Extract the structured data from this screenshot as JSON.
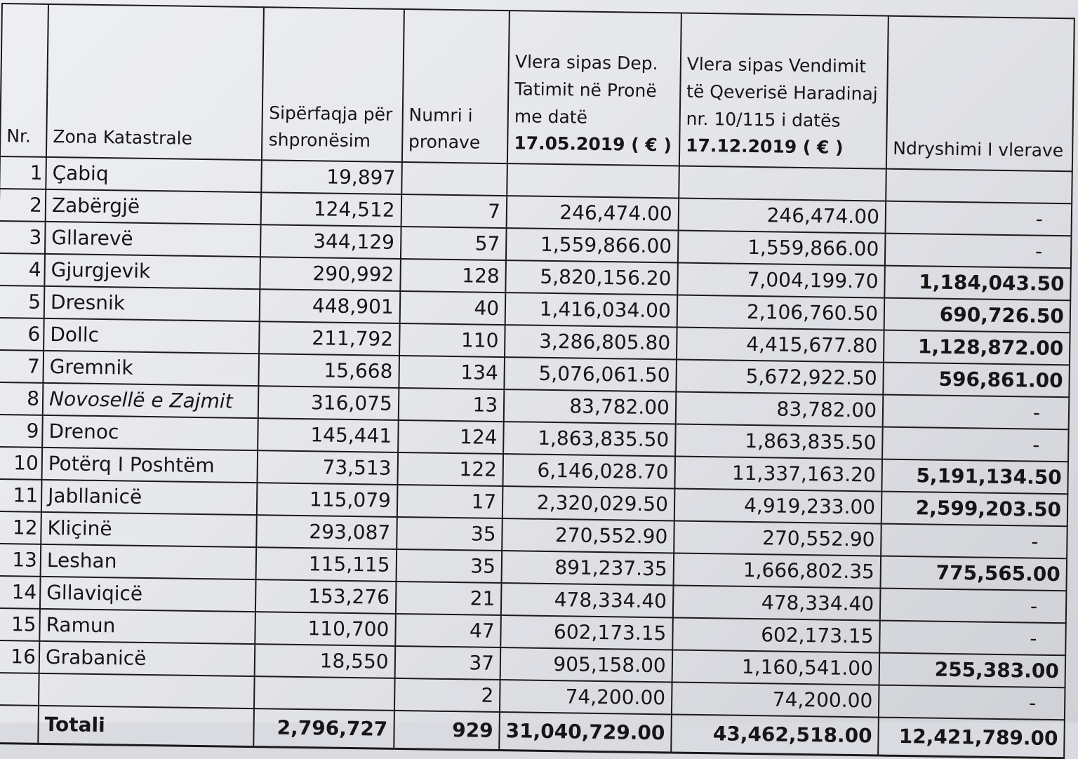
{
  "headers": {
    "nr": "Nr.",
    "zona": "Zona Katastrale",
    "siperfaqja": "Sipërfaqja për shpronësim",
    "numri": "Numri i pronave",
    "vlera_dep_line1": "Vlera sipas Dep. Tatimit në Pronë me datë",
    "vlera_dep_date": "17.05.2019 ( € )",
    "vlera_qeveri_line1": "Vlera sipas Vendimit të Qeverisë Haradinaj nr. 10/115 i datës",
    "vlera_qeveri_date": "17.12.2019 ( € )",
    "ndryshimi": "Ndryshimi I vlerave"
  },
  "rows": [
    {
      "nr": "1",
      "zona": "Çabiq",
      "siperfaqja": "19,897",
      "numri": "",
      "vlera_dep": "",
      "vlera_qeveri": "",
      "ndryshimi": ""
    },
    {
      "nr": "2",
      "zona": "Zabërgjë",
      "siperfaqja": "124,512",
      "numri": "7",
      "vlera_dep": "246,474.00",
      "vlera_qeveri": "246,474.00",
      "ndryshimi": "-"
    },
    {
      "nr": "3",
      "zona": "Gllarevë",
      "siperfaqja": "344,129",
      "numri": "57",
      "vlera_dep": "1,559,866.00",
      "vlera_qeveri": "1,559,866.00",
      "ndryshimi": "-"
    },
    {
      "nr": "4",
      "zona": "Gjurgjevik",
      "siperfaqja": "290,992",
      "numri": "128",
      "vlera_dep": "5,820,156.20",
      "vlera_qeveri": "7,004,199.70",
      "ndryshimi": "1,184,043.50"
    },
    {
      "nr": "5",
      "zona": "Dresnik",
      "siperfaqja": "448,901",
      "numri": "40",
      "vlera_dep": "1,416,034.00",
      "vlera_qeveri": "2,106,760.50",
      "ndryshimi": "690,726.50"
    },
    {
      "nr": "6",
      "zona": "Dollc",
      "siperfaqja": "211,792",
      "numri": "110",
      "vlera_dep": "3,286,805.80",
      "vlera_qeveri": "4,415,677.80",
      "ndryshimi": "1,128,872.00"
    },
    {
      "nr": "7",
      "zona": "Gremnik",
      "siperfaqja": "15,668",
      "numri": "134",
      "vlera_dep": "5,076,061.50",
      "vlera_qeveri": "5,672,922.50",
      "ndryshimi": "596,861.00"
    },
    {
      "nr": "8",
      "zona": "Novosellë e Zajmit",
      "siperfaqja": "316,075",
      "numri": "13",
      "vlera_dep": "83,782.00",
      "vlera_qeveri": "83,782.00",
      "ndryshimi": "-"
    },
    {
      "nr": "9",
      "zona": "Drenoc",
      "siperfaqja": "145,441",
      "numri": "124",
      "vlera_dep": "1,863,835.50",
      "vlera_qeveri": "1,863,835.50",
      "ndryshimi": "-"
    },
    {
      "nr": "10",
      "zona": "Potërq I Poshtëm",
      "siperfaqja": "73,513",
      "numri": "122",
      "vlera_dep": "6,146,028.70",
      "vlera_qeveri": "11,337,163.20",
      "ndryshimi": "5,191,134.50"
    },
    {
      "nr": "11",
      "zona": "Jabllanicë",
      "siperfaqja": "115,079",
      "numri": "17",
      "vlera_dep": "2,320,029.50",
      "vlera_qeveri": "4,919,233.00",
      "ndryshimi": "2,599,203.50"
    },
    {
      "nr": "12",
      "zona": "Kliçinë",
      "siperfaqja": "293,087",
      "numri": "35",
      "vlera_dep": "270,552.90",
      "vlera_qeveri": "270,552.90",
      "ndryshimi": "-"
    },
    {
      "nr": "13",
      "zona": "Leshan",
      "siperfaqja": "115,115",
      "numri": "35",
      "vlera_dep": "891,237.35",
      "vlera_qeveri": "1,666,802.35",
      "ndryshimi": "775,565.00"
    },
    {
      "nr": "14",
      "zona": "Gllaviqicë",
      "siperfaqja": "153,276",
      "numri": "21",
      "vlera_dep": "478,334.40",
      "vlera_qeveri": "478,334.40",
      "ndryshimi": "-"
    },
    {
      "nr": "15",
      "zona": "Ramun",
      "siperfaqja": "110,700",
      "numri": "47",
      "vlera_dep": "602,173.15",
      "vlera_qeveri": "602,173.15",
      "ndryshimi": "-"
    },
    {
      "nr": "16",
      "zona": "Grabanicë",
      "siperfaqja": "18,550",
      "numri": "37",
      "vlera_dep": "905,158.00",
      "vlera_qeveri": "1,160,541.00",
      "ndryshimi": "255,383.00"
    },
    {
      "nr": "",
      "zona": "",
      "siperfaqja": "",
      "numri": "2",
      "vlera_dep": "74,200.00",
      "vlera_qeveri": "74,200.00",
      "ndryshimi": "-"
    }
  ],
  "total": {
    "label": "Totali",
    "siperfaqja": "2,796,727",
    "numri": "929",
    "vlera_dep": "31,040,729.00",
    "vlera_qeveri": "43,462,518.00",
    "ndryshimi": "12,421,789.00"
  }
}
